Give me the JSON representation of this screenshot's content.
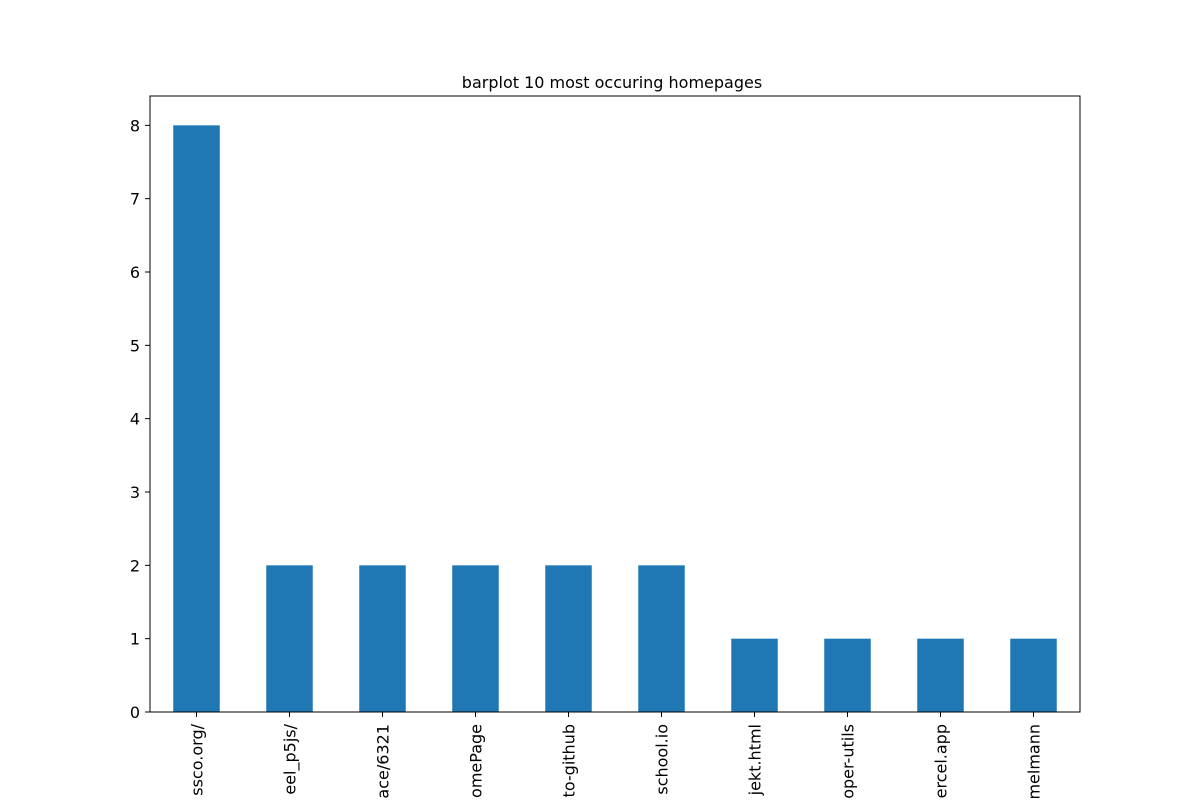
{
  "chart_data": {
    "type": "bar",
    "title": "barplot 10 most occuring homepages",
    "xlabel": "",
    "ylabel": "",
    "categories": [
      "ssco.org/",
      "eel_p5js/",
      "ace/6321",
      "omePage",
      "to-github",
      "school.io",
      "jekt.html",
      "oper-utils",
      "ercel.app",
      "melmann"
    ],
    "values": [
      8,
      2,
      2,
      2,
      2,
      2,
      1,
      1,
      1,
      1
    ],
    "ylim": [
      0,
      8.4
    ],
    "yticks": [
      0,
      1,
      2,
      3,
      4,
      5,
      6,
      7,
      8
    ],
    "grid": false,
    "legend": "none",
    "bar_color": "#1f77b4"
  }
}
